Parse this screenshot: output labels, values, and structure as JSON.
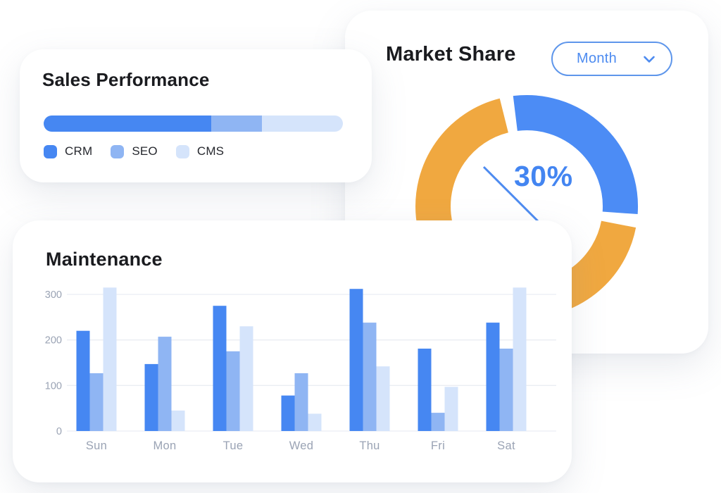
{
  "cards": {
    "sales": {
      "title": "Sales Performance"
    },
    "market": {
      "title": "Market Share",
      "period_selector": {
        "value": "Month",
        "icon": "chevron-down-icon"
      },
      "highlight_value": "30%"
    },
    "maintenance": {
      "title": "Maintenance"
    }
  },
  "colors": {
    "primary_blue": "#4687F2",
    "medium_blue": "#8FB5F3",
    "light_blue": "#D5E4FB",
    "donut_blue": "#4C8CF5",
    "donut_orange": "#F0A840",
    "accent_text_blue": "#4D8BF0",
    "pill_border_blue": "#5E96EB",
    "title_ink": "#1A1B1F",
    "axis_gray": "#9AA3B4",
    "grid_gray": "#EAEDF3"
  },
  "chart_data": [
    {
      "id": "sales-stacked-bar",
      "type": "bar",
      "variant": "horizontal-stacked-progress",
      "title": "Sales Performance",
      "categories": [
        "CRM",
        "SEO",
        "CMS"
      ],
      "values_percent": [
        56,
        17,
        27
      ],
      "colors": [
        "#4687F2",
        "#8FB5F3",
        "#D5E4FB"
      ],
      "legend_position": "bottom"
    },
    {
      "id": "market-share-donut",
      "type": "pie",
      "variant": "donut",
      "title": "Market Share",
      "period": "Month",
      "center_label": "30%",
      "rotation_deg": -10.5,
      "slice_gap_deg": 7,
      "slices": [
        {
          "label": "highlighted-share",
          "value_percent": 30,
          "color": "#4C8CF5"
        },
        {
          "label": "remaining-share",
          "value_percent": 70,
          "color": "#F0A840"
        }
      ]
    },
    {
      "id": "maintenance-grouped-bar",
      "type": "bar",
      "variant": "vertical-grouped",
      "title": "Maintenance",
      "categories": [
        "Sun",
        "Mon",
        "Tue",
        "Wed",
        "Thu",
        "Fri",
        "Sat"
      ],
      "series": [
        {
          "name": "series-dark-blue",
          "color": "#4687F2",
          "values": [
            220,
            147,
            275,
            78,
            312,
            181,
            238
          ]
        },
        {
          "name": "series-medium-blue",
          "color": "#8FB5F3",
          "values": [
            127,
            207,
            175,
            127,
            238,
            40,
            181
          ]
        },
        {
          "name": "series-light-blue",
          "color": "#D5E4FB",
          "values": [
            315,
            45,
            230,
            38,
            142,
            97,
            315
          ]
        }
      ],
      "yticks": [
        0,
        100,
        200,
        300
      ],
      "ylim": [
        0,
        330
      ],
      "grid": true,
      "legend": false
    }
  ]
}
